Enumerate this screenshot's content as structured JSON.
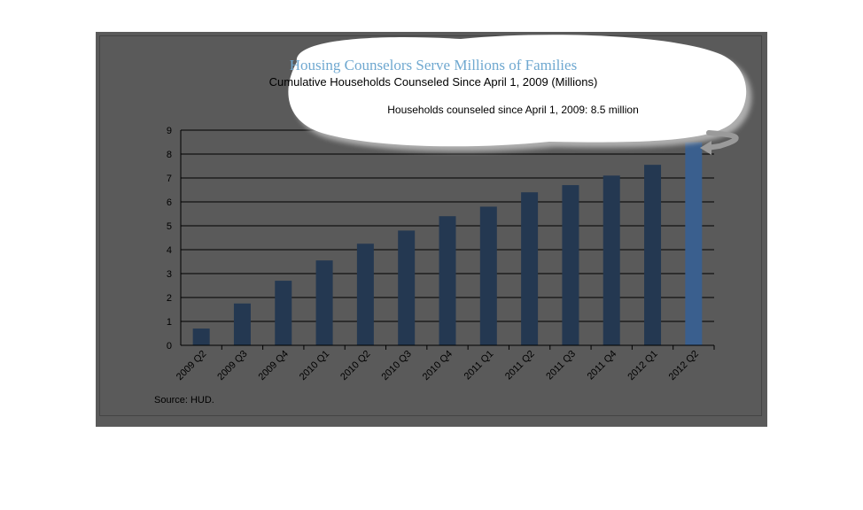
{
  "chart_data": {
    "type": "bar",
    "title": "Housing Counselors Serve Millions of Families",
    "subtitle": "Cumulative Households Counseled Since April 1, 2009 (Millions)",
    "categories": [
      "2009 Q2",
      "2009 Q3",
      "2009 Q4",
      "2010 Q1",
      "2010 Q2",
      "2010 Q3",
      "2010 Q4",
      "2011 Q1",
      "2011 Q2",
      "2011 Q3",
      "2011 Q4",
      "2012 Q1",
      "2012 Q2"
    ],
    "values": [
      0.7,
      1.75,
      2.7,
      3.55,
      4.25,
      4.8,
      5.4,
      5.8,
      6.4,
      6.7,
      7.1,
      7.55,
      8.5
    ],
    "ylim": [
      0,
      9
    ],
    "yticks": [
      0,
      1,
      2,
      3,
      4,
      5,
      6,
      7,
      8,
      9
    ],
    "grid": true,
    "legend": "none",
    "annotation": "Households counseled  since  April 1, 2009: 8.5 million",
    "source": "Source:  HUD.",
    "colors": {
      "bar": "#243851",
      "bar_highlight": "#3a5f8e",
      "panel": "#5a5a5a",
      "title": "#6fa8d0"
    }
  }
}
